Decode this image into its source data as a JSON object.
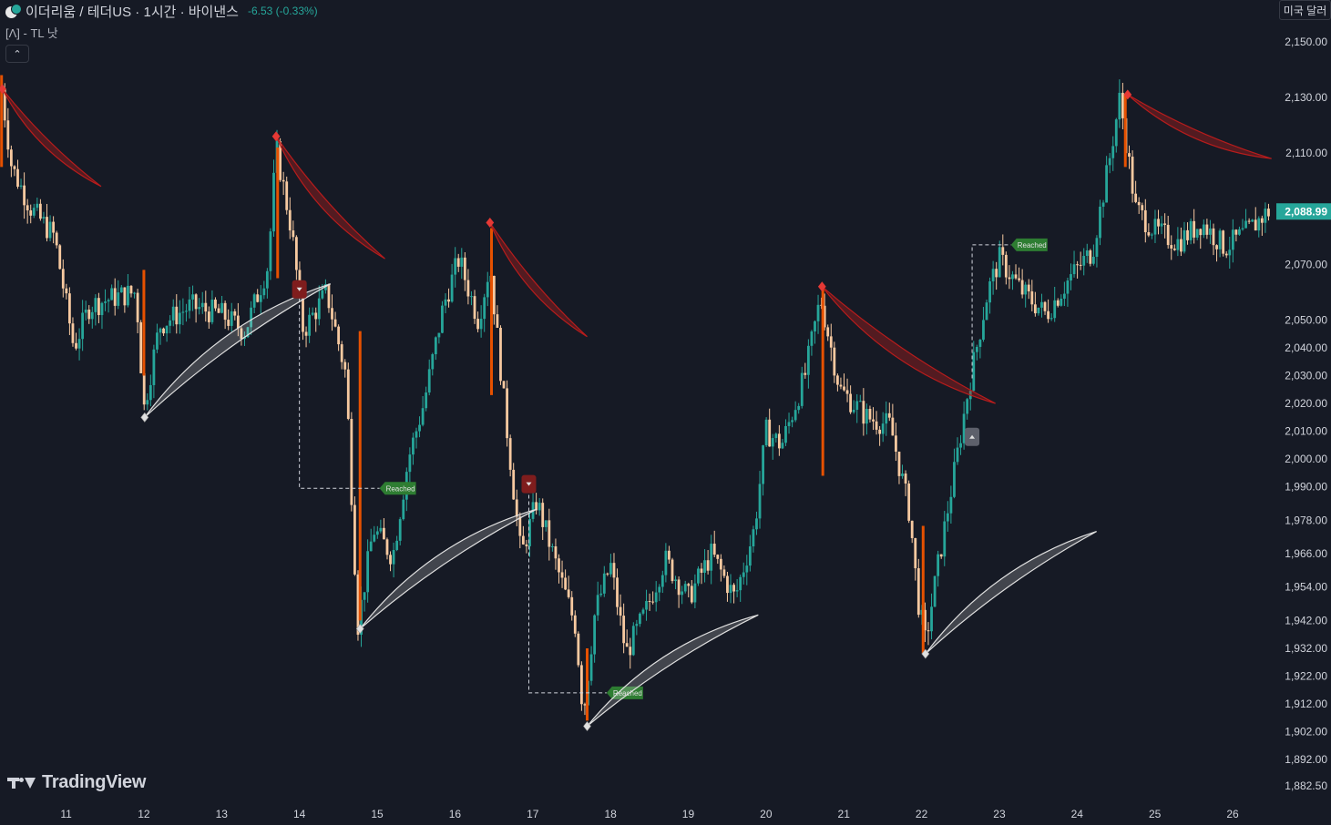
{
  "header": {
    "symbol": "이더리움 / 테더US · 1시간 · 바이낸스",
    "change": "-6.53 (-0.33%)",
    "indicator": "[Λ] - TL 낫",
    "collapse_glyph": "⌃",
    "currency": "미국 달러"
  },
  "logo": {
    "text": "TradingView"
  },
  "colors": {
    "background": "#161a25",
    "up": "#26a69a",
    "down": "#f7c9a0",
    "sickle_red": "#b71c1c",
    "sickle_white": "#e0e0e0",
    "pivot_line": "#e65100",
    "reached_badge": "#2e7d32"
  },
  "chart_data": {
    "type": "candlestick",
    "symbol": "ETH/USDT",
    "interval": "1h",
    "ylim": [
      1877,
      2165
    ],
    "price_ticks": [
      2150,
      2130,
      2110,
      2070,
      2050,
      2040,
      2030,
      2020,
      2010,
      2000,
      1990,
      1978,
      1966,
      1954,
      1942,
      1932,
      1922,
      1912,
      1902,
      1892,
      1882.5
    ],
    "price_tick_labels": [
      "2,150.00",
      "2,130.00",
      "2,110.00",
      "2,070.00",
      "2,050.00",
      "2,040.00",
      "2,030.00",
      "2,020.00",
      "2,010.00",
      "2,000.00",
      "1,990.00",
      "1,978.00",
      "1,966.00",
      "1,954.00",
      "1,942.00",
      "1,932.00",
      "1,922.00",
      "1,912.00",
      "1,902.00",
      "1,892.00",
      "1,882.50"
    ],
    "xlim": [
      10.15,
      26.55
    ],
    "x_ticks": [
      11,
      12,
      13,
      14,
      15,
      16,
      17,
      18,
      19,
      20,
      21,
      22,
      23,
      24,
      25,
      26
    ],
    "x_tick_labels": [
      "11",
      "12",
      "13",
      "14",
      "15",
      "16",
      "17",
      "18",
      "19",
      "20",
      "21",
      "22",
      "23",
      "24",
      "25",
      "26"
    ],
    "last_price": 2088.99,
    "last_price_label": "2,088.99",
    "price_path": [
      [
        10.17,
        2133
      ],
      [
        10.3,
        2105
      ],
      [
        10.55,
        2090
      ],
      [
        10.85,
        2080
      ],
      [
        11.1,
        2040
      ],
      [
        11.3,
        2055
      ],
      [
        11.6,
        2058
      ],
      [
        11.9,
        2060
      ],
      [
        12.0,
        2018
      ],
      [
        12.2,
        2048
      ],
      [
        12.6,
        2055
      ],
      [
        13.0,
        2052
      ],
      [
        13.3,
        2046
      ],
      [
        13.6,
        2070
      ],
      [
        13.7,
        2112
      ],
      [
        13.9,
        2082
      ],
      [
        14.05,
        2046
      ],
      [
        14.35,
        2060
      ],
      [
        14.6,
        2030
      ],
      [
        14.75,
        1940
      ],
      [
        14.95,
        1975
      ],
      [
        15.2,
        1965
      ],
      [
        15.4,
        2000
      ],
      [
        15.6,
        2020
      ],
      [
        15.85,
        2055
      ],
      [
        16.05,
        2072
      ],
      [
        16.3,
        2050
      ],
      [
        16.45,
        2070
      ],
      [
        16.65,
        2015
      ],
      [
        16.85,
        1965
      ],
      [
        17.05,
        1985
      ],
      [
        17.3,
        1962
      ],
      [
        17.55,
        1940
      ],
      [
        17.65,
        1908
      ],
      [
        17.8,
        1945
      ],
      [
        18.0,
        1962
      ],
      [
        18.2,
        1930
      ],
      [
        18.45,
        1945
      ],
      [
        18.7,
        1964
      ],
      [
        19.0,
        1950
      ],
      [
        19.3,
        1966
      ],
      [
        19.6,
        1950
      ],
      [
        19.85,
        1975
      ],
      [
        20.0,
        2010
      ],
      [
        20.2,
        2005
      ],
      [
        20.5,
        2030
      ],
      [
        20.7,
        2058
      ],
      [
        20.95,
        2025
      ],
      [
        21.3,
        2015
      ],
      [
        21.6,
        2012
      ],
      [
        21.85,
        1980
      ],
      [
        21.95,
        1950
      ],
      [
        22.05,
        1934
      ],
      [
        22.2,
        1960
      ],
      [
        22.45,
        2000
      ],
      [
        22.6,
        2025
      ],
      [
        22.85,
        2060
      ],
      [
        23.0,
        2072
      ],
      [
        23.3,
        2060
      ],
      [
        23.6,
        2052
      ],
      [
        23.9,
        2065
      ],
      [
        24.2,
        2075
      ],
      [
        24.4,
        2105
      ],
      [
        24.55,
        2130
      ],
      [
        24.75,
        2090
      ],
      [
        25.0,
        2082
      ],
      [
        25.3,
        2078
      ],
      [
        25.6,
        2085
      ],
      [
        25.9,
        2076
      ],
      [
        26.2,
        2082
      ],
      [
        26.45,
        2089
      ]
    ],
    "sickles": [
      {
        "kind": "bearish",
        "pivot": [
          10.18,
          2133
        ],
        "x_end": 11.45,
        "y_end": 2098
      },
      {
        "kind": "bearish",
        "pivot": [
          13.7,
          2116
        ],
        "x_end": 15.1,
        "y_end": 2072
      },
      {
        "kind": "bearish",
        "pivot": [
          16.45,
          2085
        ],
        "x_end": 17.7,
        "y_end": 2044
      },
      {
        "kind": "bearish",
        "pivot": [
          20.72,
          2062
        ],
        "x_end": 22.95,
        "y_end": 2020
      },
      {
        "kind": "bearish",
        "pivot": [
          24.65,
          2131
        ],
        "x_end": 26.5,
        "y_end": 2108
      },
      {
        "kind": "bullish",
        "pivot": [
          12.01,
          2015
        ],
        "x_end": 14.4,
        "y_end": 2063
      },
      {
        "kind": "bullish",
        "pivot": [
          14.78,
          1939
        ],
        "x_end": 17.05,
        "y_end": 1982
      },
      {
        "kind": "bullish",
        "pivot": [
          17.7,
          1904
        ],
        "x_end": 19.9,
        "y_end": 1944
      },
      {
        "kind": "bullish",
        "pivot": [
          22.05,
          1930
        ],
        "x_end": 24.25,
        "y_end": 1974
      }
    ],
    "pivot_lines": [
      {
        "x": 10.17,
        "y_top": 2138,
        "y_bottom": 2105
      },
      {
        "x": 12.0,
        "y_top": 2068,
        "y_bottom": 2030
      },
      {
        "x": 13.72,
        "y_top": 2112,
        "y_bottom": 2065
      },
      {
        "x": 14.78,
        "y_top": 2046,
        "y_bottom": 1942
      },
      {
        "x": 16.47,
        "y_top": 2083,
        "y_bottom": 2023
      },
      {
        "x": 17.7,
        "y_top": 1932,
        "y_bottom": 1906
      },
      {
        "x": 20.73,
        "y_top": 2062,
        "y_bottom": 1994
      },
      {
        "x": 22.02,
        "y_top": 1976,
        "y_bottom": 1930
      },
      {
        "x": 24.62,
        "y_top": 2131,
        "y_bottom": 2105
      }
    ],
    "targets": [
      {
        "label": "Reached",
        "x_start": 14.0,
        "y_top": 2060,
        "y_badge": 1989.5,
        "x_badge": 15.03
      },
      {
        "label": "Reached",
        "x_start": 16.95,
        "y_top": 1994,
        "y_badge": 1916,
        "x_badge": 17.95
      },
      {
        "label": "Reached",
        "x_start": 22.65,
        "y_top": 2029,
        "y_badge": 2077,
        "x_badge": 23.15
      }
    ],
    "signals": [
      {
        "kind": "down",
        "x": 14.0,
        "y": 2061
      },
      {
        "kind": "down",
        "x": 16.95,
        "y": 1991
      },
      {
        "kind": "up",
        "x": 22.65,
        "y": 2008
      }
    ]
  }
}
